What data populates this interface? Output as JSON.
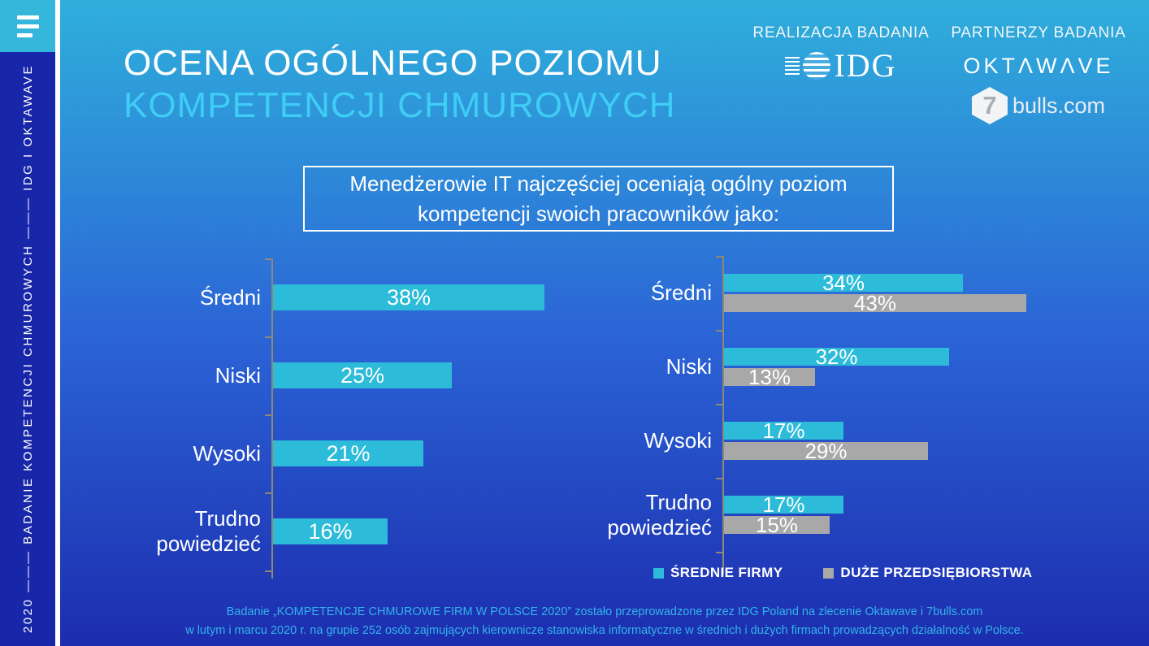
{
  "sidebar": {
    "vertical_text": "2020 ——— BADANIE KOMPETENCJI CHMUROWYCH ——— IDG I OKTAWAVE"
  },
  "header": {
    "title_line1": "OCENA OGÓLNEGO POZIOMU",
    "title_line2": "KOMPETENCJI CHMUROWYCH",
    "realization_label": "REALIZACJA BADANIA",
    "idg_text": "IDG",
    "partners_label": "PARTNERZY BADANIA",
    "oktawave_text": "OKTΛWΛVE",
    "bulls_seven": "7",
    "bulls_text": "bulls.com"
  },
  "callout": {
    "text": "Menedżerowie IT najczęściej oceniają ogólny poziom kompetencji swoich pracowników jako:"
  },
  "legend": [
    {
      "label": "ŚREDNIE FIRMY",
      "color": "#2cbbd8"
    },
    {
      "label": "DUŻE PRZEDSIĘBIORSTWA",
      "color": "#a8a8a8"
    }
  ],
  "footer": {
    "line1": "Badanie „KOMPETENCJE CHMUROWE FIRM W POLSCE 2020”  zostało przeprowadzone przez IDG Poland  na zlecenie Oktawave i 7bulls.com",
    "line2": "w  lutym i marcu 2020 r. na grupie 252 osób zajmujących kierownicze stanowiska informatyczne w średnich i dużych firmach prowadzących działalność w Polsce."
  },
  "colors": {
    "bar_cyan": "#2cbbd8",
    "bar_gray": "#a8a8a8",
    "axis": "#8e8876",
    "title_cyan": "#3ecdf4",
    "footer_text": "#32b4e8",
    "sidebar_navy": "#1827aa",
    "menu_square_cyan": "#35b7db"
  },
  "chart_data": [
    {
      "type": "bar",
      "orientation": "horizontal",
      "title": "",
      "categories": [
        "Średni",
        "Niski",
        "Wysoki",
        "Trudno powiedzieć"
      ],
      "series": [
        {
          "values": [
            38,
            25,
            21,
            16
          ],
          "color": "#2cbbd8"
        }
      ],
      "unit": "%",
      "value_labels": "inside-center",
      "axis_line": true,
      "grid": false,
      "xlim": [
        0,
        45
      ]
    },
    {
      "type": "bar",
      "orientation": "horizontal",
      "title": "",
      "categories": [
        "Średni",
        "Niski",
        "Wysoki",
        "Trudno powiedzieć"
      ],
      "series": [
        {
          "name": "ŚREDNIE FIRMY",
          "values": [
            34,
            32,
            17,
            17
          ],
          "color": "#2cbbd8"
        },
        {
          "name": "DUŻE PRZEDSIĘBIORSTWA",
          "values": [
            43,
            13,
            29,
            15
          ],
          "color": "#a8a8a8"
        }
      ],
      "unit": "%",
      "value_labels": "inside-center",
      "axis_line": true,
      "grid": false,
      "legend_position": "bottom",
      "xlim": [
        0,
        45
      ]
    }
  ]
}
